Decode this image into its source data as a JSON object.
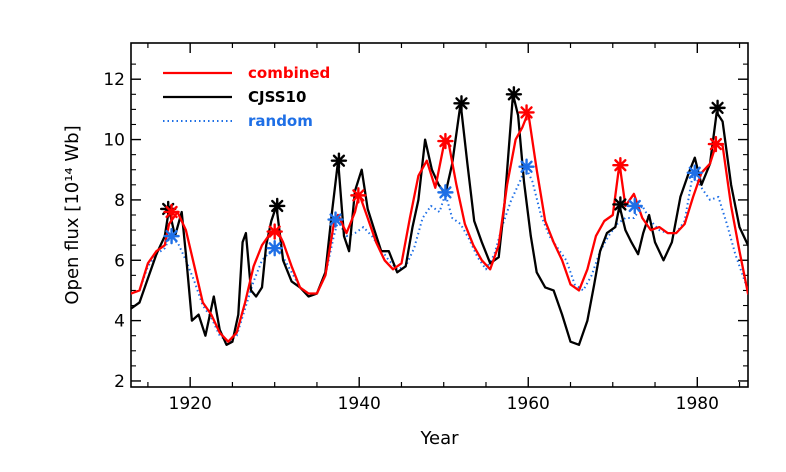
{
  "chart_data": {
    "type": "line",
    "xlabel": "Year",
    "ylabel": "Open flux [10¹⁴ Wb]",
    "xlim": [
      1913,
      1986
    ],
    "ylim": [
      1.8,
      13.2
    ],
    "x_ticks": [
      1920,
      1940,
      1960,
      1980
    ],
    "y_ticks": [
      2,
      4,
      6,
      8,
      10,
      12
    ],
    "legend_position": "top-left",
    "grid": false,
    "series": [
      {
        "name": "combined",
        "color": "#ff0000",
        "style": "solid",
        "x": [
          1913,
          1914,
          1915,
          1916,
          1917,
          1917.5,
          1918.5,
          1919.5,
          1920.5,
          1921.5,
          1922.5,
          1923.5,
          1924.5,
          1925.5,
          1926.5,
          1927.5,
          1928.5,
          1929.5,
          1930.3,
          1931,
          1932,
          1933,
          1934,
          1935,
          1936,
          1937,
          1937.5,
          1938.5,
          1939.5,
          1940,
          1941,
          1942,
          1943,
          1944,
          1945,
          1946,
          1947,
          1948,
          1949,
          1950,
          1950.5,
          1951.5,
          1952.5,
          1953.5,
          1954.5,
          1955.5,
          1956.5,
          1957.5,
          1958.5,
          1959.3,
          1960,
          1961,
          1962,
          1963,
          1964,
          1965,
          1966,
          1967,
          1968,
          1969,
          1970,
          1970.8,
          1971.5,
          1972.5,
          1973.5,
          1974.5,
          1975.5,
          1976.5,
          1977.5,
          1978.5,
          1979.5,
          1980.5,
          1981.5,
          1982.3,
          1983,
          1984,
          1985,
          1986
        ],
        "y": [
          4.9,
          5.0,
          5.9,
          6.3,
          6.5,
          7.2,
          7.6,
          7.0,
          5.8,
          4.6,
          4.2,
          3.6,
          3.3,
          3.6,
          4.6,
          5.8,
          6.5,
          6.9,
          7.0,
          6.6,
          5.8,
          5.1,
          4.9,
          4.9,
          5.5,
          7.2,
          7.5,
          6.9,
          7.6,
          8.2,
          7.4,
          6.6,
          6.0,
          5.7,
          5.9,
          7.4,
          8.8,
          9.3,
          8.4,
          9.8,
          10.0,
          8.5,
          7.2,
          6.5,
          6.0,
          5.7,
          6.5,
          8.5,
          10.0,
          10.4,
          10.9,
          9.0,
          7.3,
          6.6,
          6.0,
          5.2,
          5.0,
          5.7,
          6.8,
          7.3,
          7.5,
          9.2,
          7.8,
          8.2,
          7.4,
          7.0,
          7.1,
          6.9,
          6.9,
          7.2,
          8.1,
          8.9,
          9.2,
          9.9,
          9.8,
          7.8,
          6.3,
          4.9
        ]
      },
      {
        "name": "CJSS10",
        "color": "#000000",
        "style": "solid",
        "x": [
          1913,
          1914,
          1915,
          1916,
          1917,
          1917.5,
          1918.2,
          1919,
          1919.5,
          1920.2,
          1921,
          1921.8,
          1922.8,
          1923.5,
          1924.3,
          1925,
          1925.7,
          1926.2,
          1926.6,
          1927.2,
          1927.8,
          1928.5,
          1929,
          1929.6,
          1930.2,
          1931,
          1932,
          1933,
          1934,
          1935,
          1936,
          1936.7,
          1937.5,
          1938.2,
          1938.8,
          1939.5,
          1940.3,
          1941,
          1941.8,
          1942.6,
          1943.5,
          1944.5,
          1945.5,
          1946.3,
          1947,
          1947.8,
          1948.6,
          1949.4,
          1950.2,
          1951,
          1952,
          1952.8,
          1953.6,
          1954.5,
          1955.5,
          1956.5,
          1957.2,
          1958.2,
          1958.8,
          1959.5,
          1960.3,
          1961,
          1962,
          1963,
          1964,
          1965,
          1966,
          1967,
          1967.8,
          1968.5,
          1969.3,
          1970.3,
          1970.8,
          1971.5,
          1972.2,
          1973,
          1973.6,
          1974.3,
          1975,
          1976,
          1977,
          1978,
          1979,
          1979.7,
          1980.5,
          1981.5,
          1982.3,
          1983,
          1984,
          1985,
          1986
        ],
        "y": [
          4.4,
          4.6,
          5.4,
          6.2,
          6.8,
          7.7,
          6.8,
          7.6,
          6.2,
          4.0,
          4.2,
          3.5,
          4.8,
          3.7,
          3.2,
          3.3,
          4.2,
          6.6,
          6.9,
          5.0,
          4.8,
          5.1,
          6.5,
          7.3,
          7.8,
          6.0,
          5.3,
          5.1,
          4.8,
          4.9,
          5.6,
          7.4,
          9.3,
          6.8,
          6.3,
          8.3,
          9.0,
          7.7,
          7.0,
          6.3,
          6.3,
          5.6,
          5.8,
          7.1,
          8.0,
          10.0,
          9.0,
          8.5,
          8.2,
          9.2,
          11.2,
          9.2,
          7.3,
          6.6,
          5.9,
          6.1,
          7.9,
          11.5,
          10.8,
          8.6,
          6.8,
          5.6,
          5.1,
          5.0,
          4.2,
          3.3,
          3.2,
          4.0,
          5.2,
          6.3,
          6.9,
          7.1,
          7.8,
          7.0,
          6.6,
          6.2,
          6.9,
          7.5,
          6.6,
          6.0,
          6.6,
          8.1,
          8.9,
          9.4,
          8.5,
          9.2,
          10.9,
          10.6,
          8.5,
          7.1,
          6.5
        ]
      },
      {
        "name": "random",
        "color": "#1e6fe6",
        "style": "dotted",
        "x": [
          1913,
          1914,
          1915,
          1916,
          1917,
          1917.5,
          1918.5,
          1919.5,
          1920.5,
          1921.5,
          1922.5,
          1923.5,
          1924.5,
          1925.5,
          1926.5,
          1927.5,
          1928.5,
          1929.5,
          1930.3,
          1931,
          1932,
          1933,
          1934,
          1935,
          1936,
          1937,
          1937.5,
          1938.5,
          1939.5,
          1940.5,
          1941.5,
          1942.5,
          1943.5,
          1944.5,
          1945.5,
          1946.5,
          1947.5,
          1948.5,
          1949.5,
          1950.2,
          1951,
          1952,
          1953,
          1954,
          1955,
          1956,
          1957,
          1958,
          1959,
          1959.7,
          1960.5,
          1961.5,
          1962.5,
          1963.5,
          1964.5,
          1965.5,
          1966.5,
          1967.5,
          1968.5,
          1969.5,
          1970.5,
          1971.5,
          1972.5,
          1973.5,
          1974.5,
          1975.5,
          1976.5,
          1977.5,
          1978.5,
          1979.5,
          1980.5,
          1981.5,
          1982.5,
          1983.5,
          1984.5,
          1985.5,
          1986
        ],
        "y": [
          4.9,
          5.0,
          5.8,
          6.2,
          6.4,
          6.7,
          6.6,
          6.0,
          5.3,
          4.5,
          4.1,
          3.5,
          3.3,
          3.5,
          4.4,
          5.3,
          6.0,
          6.3,
          6.5,
          6.1,
          5.6,
          5.1,
          4.9,
          4.9,
          5.5,
          6.8,
          7.3,
          6.8,
          6.9,
          7.1,
          6.8,
          6.4,
          6.0,
          5.7,
          5.8,
          6.4,
          7.4,
          7.8,
          7.6,
          8.2,
          7.4,
          7.2,
          6.7,
          6.1,
          5.7,
          6.2,
          7.2,
          8.0,
          8.6,
          9.1,
          8.6,
          7.5,
          6.8,
          6.4,
          6.0,
          5.2,
          5.0,
          5.5,
          6.3,
          6.8,
          7.2,
          7.4,
          7.4,
          7.8,
          7.3,
          7.0,
          6.9,
          6.9,
          7.3,
          8.9,
          8.4,
          8.0,
          8.1,
          7.2,
          6.2,
          5.4,
          5.0
        ]
      }
    ],
    "markers": [
      {
        "series": "CJSS10",
        "color": "#000000",
        "points": [
          [
            1917.4,
            7.7
          ],
          [
            1930.3,
            7.8
          ],
          [
            1937.6,
            9.3
          ],
          [
            1952.1,
            11.2
          ],
          [
            1958.3,
            11.5
          ],
          [
            1970.9,
            7.85
          ],
          [
            1982.4,
            11.05
          ]
        ]
      },
      {
        "series": "combined",
        "color": "#ff0000",
        "points": [
          [
            1917.8,
            7.6
          ],
          [
            1930.0,
            6.95
          ],
          [
            1939.9,
            8.15
          ],
          [
            1950.2,
            9.95
          ],
          [
            1959.8,
            10.9
          ],
          [
            1970.9,
            9.15
          ],
          [
            1982.2,
            9.85
          ]
        ]
      },
      {
        "series": "random",
        "color": "#1e6fe6",
        "points": [
          [
            1917.8,
            6.8
          ],
          [
            1930.0,
            6.4
          ],
          [
            1937.2,
            7.35
          ],
          [
            1950.2,
            8.25
          ],
          [
            1959.8,
            9.1
          ],
          [
            1972.6,
            7.8
          ],
          [
            1979.7,
            8.9
          ]
        ]
      }
    ]
  }
}
